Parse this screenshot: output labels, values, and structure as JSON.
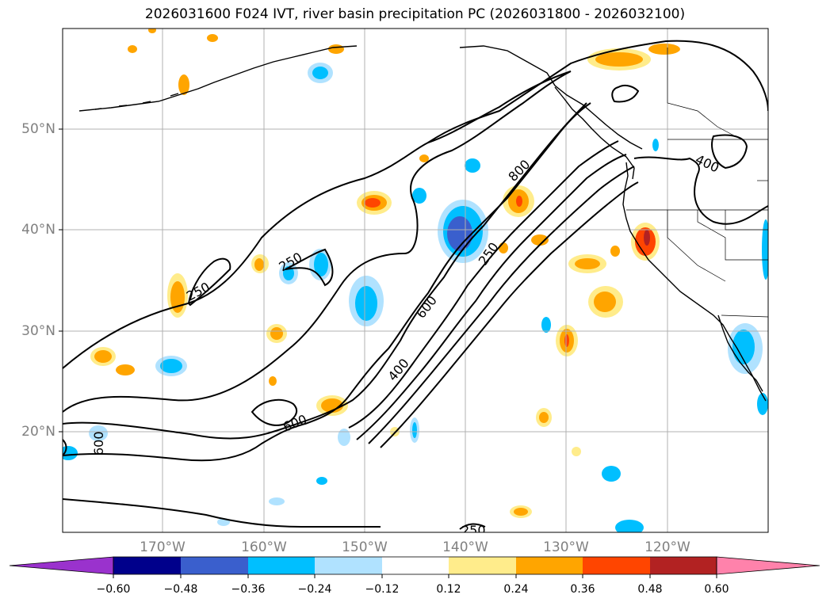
{
  "title": "2026031600 F024 IVT, river basin precipitation PC (2026031800 - 2026032100)",
  "axes": {
    "lat_labels": [
      "50°N",
      "40°N",
      "30°N",
      "20°N"
    ],
    "lon_labels": [
      "170°W",
      "160°W",
      "150°W",
      "140°W",
      "130°W",
      "120°W"
    ]
  },
  "contour_labels": [
    "250",
    "250",
    "250",
    "250",
    "400",
    "400",
    "600",
    "600",
    "800",
    "600",
    "250"
  ],
  "colorbar": {
    "ticks": [
      "−0.60",
      "−0.48",
      "−0.36",
      "−0.24",
      "−0.12",
      "0.12",
      "0.24",
      "0.36",
      "0.48",
      "0.60"
    ],
    "colors": [
      "#9a32cd",
      "#00008b",
      "#3a5fcd",
      "#00bfff",
      "#b0e2ff",
      "#ffffff",
      "#ffec8b",
      "#ffa500",
      "#ff4500",
      "#b22222",
      "#ff82ab"
    ]
  }
}
